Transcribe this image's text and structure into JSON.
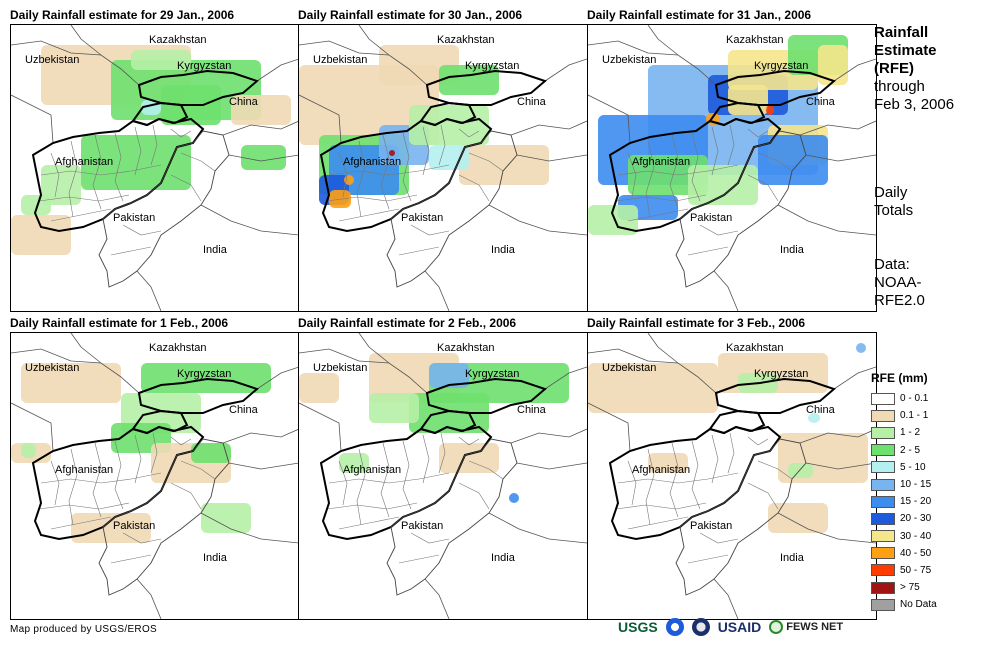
{
  "panels": [
    {
      "title": "Daily Rainfall estimate for 29 Jan., 2006"
    },
    {
      "title": "Daily Rainfall estimate for 30 Jan., 2006"
    },
    {
      "title": "Daily Rainfall estimate for 31 Jan., 2006"
    },
    {
      "title": "Daily Rainfall estimate for 1 Feb., 2006"
    },
    {
      "title": "Daily Rainfall estimate for 2 Feb., 2006"
    },
    {
      "title": "Daily Rainfall estimate for 3 Feb., 2006"
    }
  ],
  "map_labels": {
    "kazakhstan": "Kazakhstan",
    "uzbekistan": "Uzbekistan",
    "kyrgyzstan": "Kyrgyzstan",
    "china": "China",
    "afghanistan": "Afghanistan",
    "pakistan": "Pakistan",
    "india": "India"
  },
  "sidebar": {
    "title_lines": [
      "Rainfall",
      "Estimate",
      "(RFE)"
    ],
    "through_lines": [
      "through",
      "Feb 3, 2006"
    ],
    "totals_lines": [
      "Daily",
      "Totals"
    ],
    "data_lines": [
      "Data:",
      "NOAA-",
      "RFE2.0"
    ]
  },
  "legend": {
    "title": "RFE (mm)",
    "items": [
      {
        "label": "0 - 0.1",
        "color": "#ffffff"
      },
      {
        "label": "0.1 - 1",
        "color": "#f0d9b5"
      },
      {
        "label": "1 - 2",
        "color": "#b6f0a6"
      },
      {
        "label": "2 - 5",
        "color": "#6ee06e"
      },
      {
        "label": "5 - 10",
        "color": "#b4f0f0"
      },
      {
        "label": "10 - 15",
        "color": "#78b4f0"
      },
      {
        "label": "15 - 20",
        "color": "#3c8cf0"
      },
      {
        "label": "20 - 30",
        "color": "#1e5adc"
      },
      {
        "label": "30 - 40",
        "color": "#f5e68c"
      },
      {
        "label": "40 - 50",
        "color": "#ffa014"
      },
      {
        "label": "50 - 75",
        "color": "#ff3c00"
      },
      {
        "label": "> 75",
        "color": "#a01414"
      },
      {
        "label": "No Data",
        "color": "#a0a0a0"
      }
    ]
  },
  "credit": "Map produced by USGS/EROS",
  "logos": {
    "usgs": "USGS",
    "usaid": "USAID",
    "fewsnet": "FEWS NET"
  }
}
